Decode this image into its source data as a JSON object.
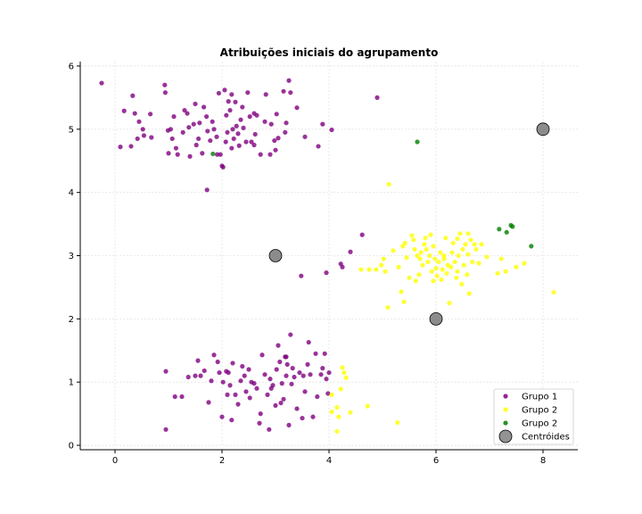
{
  "chart_data": {
    "type": "scatter",
    "title": "Atribuições iniciais do agrupamento",
    "xlabel": "",
    "ylabel": "",
    "xlim": [
      -0.65,
      8.65
    ],
    "ylim": [
      -0.07,
      6.07
    ],
    "xticks": [
      0,
      2,
      4,
      6,
      8
    ],
    "yticks": [
      0,
      1,
      2,
      3,
      4,
      5,
      6
    ],
    "grid": true,
    "legend_position": "bottom-right",
    "series": [
      {
        "name": "Grupo 1",
        "color": "#800080",
        "points": [
          [
            -0.25,
            5.73
          ],
          [
            0.17,
            5.29
          ],
          [
            0.33,
            5.53
          ],
          [
            0.1,
            4.72
          ],
          [
            0.3,
            4.73
          ],
          [
            0.37,
            5.25
          ],
          [
            0.42,
            4.85
          ],
          [
            0.45,
            5.12
          ],
          [
            0.52,
            5.0
          ],
          [
            0.54,
            4.9
          ],
          [
            0.66,
            5.24
          ],
          [
            0.68,
            4.87
          ],
          [
            0.93,
            5.7
          ],
          [
            0.94,
            5.58
          ],
          [
            0.99,
            4.98
          ],
          [
            1.0,
            4.62
          ],
          [
            1.04,
            5.0
          ],
          [
            1.07,
            4.85
          ],
          [
            1.1,
            5.2
          ],
          [
            1.14,
            4.7
          ],
          [
            1.17,
            4.6
          ],
          [
            1.27,
            4.95
          ],
          [
            1.3,
            5.3
          ],
          [
            1.35,
            5.25
          ],
          [
            1.38,
            5.03
          ],
          [
            1.4,
            4.57
          ],
          [
            1.47,
            5.08
          ],
          [
            1.52,
            4.75
          ],
          [
            1.56,
            4.85
          ],
          [
            1.58,
            5.1
          ],
          [
            1.63,
            4.62
          ],
          [
            1.66,
            5.35
          ],
          [
            1.71,
            5.2
          ],
          [
            1.73,
            4.97
          ],
          [
            1.78,
            4.82
          ],
          [
            1.82,
            5.12
          ],
          [
            1.85,
            5.0
          ],
          [
            1.9,
            4.88
          ],
          [
            1.94,
            5.57
          ],
          [
            1.97,
            4.6
          ],
          [
            2.0,
            4.42
          ],
          [
            2.02,
            4.4
          ],
          [
            2.05,
            5.62
          ],
          [
            2.07,
            4.8
          ],
          [
            2.08,
            5.22
          ],
          [
            2.1,
            4.95
          ],
          [
            2.12,
            5.44
          ],
          [
            2.15,
            5.3
          ],
          [
            2.18,
            4.7
          ],
          [
            2.2,
            5.0
          ],
          [
            2.22,
            4.85
          ],
          [
            2.25,
            5.43
          ],
          [
            2.27,
            5.05
          ],
          [
            2.3,
            4.93
          ],
          [
            2.32,
            4.74
          ],
          [
            2.35,
            5.15
          ],
          [
            2.4,
            5.02
          ],
          [
            2.45,
            4.8
          ],
          [
            2.48,
            5.58
          ],
          [
            2.52,
            5.2
          ],
          [
            2.55,
            4.8
          ],
          [
            2.6,
            5.25
          ],
          [
            2.62,
            4.92
          ],
          [
            2.65,
            5.22
          ],
          [
            2.72,
            4.6
          ],
          [
            2.8,
            5.12
          ],
          [
            2.82,
            5.55
          ],
          [
            2.9,
            4.6
          ],
          [
            2.92,
            5.08
          ],
          [
            2.98,
            4.82
          ],
          [
            3.0,
            4.67
          ],
          [
            3.02,
            5.24
          ],
          [
            3.05,
            4.86
          ],
          [
            3.15,
            5.6
          ],
          [
            3.18,
            4.95
          ],
          [
            3.2,
            5.1
          ],
          [
            3.25,
            5.77
          ],
          [
            3.28,
            5.58
          ],
          [
            3.4,
            5.34
          ],
          [
            3.55,
            4.88
          ],
          [
            3.8,
            4.73
          ],
          [
            3.88,
            5.08
          ],
          [
            4.05,
            4.99
          ],
          [
            4.9,
            5.5
          ],
          [
            1.72,
            4.04
          ],
          [
            1.91,
            4.6
          ],
          [
            2.18,
            5.55
          ],
          [
            2.38,
            5.35
          ],
          [
            1.5,
            5.4
          ],
          [
            2.6,
            4.75
          ],
          [
            0.95,
            0.25
          ],
          [
            0.95,
            1.17
          ],
          [
            1.12,
            0.77
          ],
          [
            1.37,
            1.08
          ],
          [
            1.5,
            1.1
          ],
          [
            1.55,
            1.34
          ],
          [
            1.6,
            1.1
          ],
          [
            1.67,
            1.18
          ],
          [
            1.75,
            0.68
          ],
          [
            1.8,
            1.02
          ],
          [
            1.85,
            1.43
          ],
          [
            1.92,
            1.32
          ],
          [
            1.95,
            1.15
          ],
          [
            2.0,
            0.45
          ],
          [
            2.02,
            1.0
          ],
          [
            2.08,
            1.17
          ],
          [
            2.1,
            0.8
          ],
          [
            2.12,
            1.15
          ],
          [
            2.15,
            0.95
          ],
          [
            2.18,
            0.4
          ],
          [
            2.2,
            1.3
          ],
          [
            2.25,
            0.8
          ],
          [
            2.3,
            0.65
          ],
          [
            2.35,
            1.02
          ],
          [
            2.38,
            1.25
          ],
          [
            2.42,
            1.1
          ],
          [
            2.45,
            0.85
          ],
          [
            2.5,
            1.2
          ],
          [
            2.52,
            0.75
          ],
          [
            2.55,
            1.0
          ],
          [
            2.6,
            0.98
          ],
          [
            2.65,
            0.9
          ],
          [
            2.7,
            0.35
          ],
          [
            2.72,
            0.5
          ],
          [
            2.75,
            1.43
          ],
          [
            2.8,
            1.12
          ],
          [
            2.85,
            0.8
          ],
          [
            2.88,
            0.25
          ],
          [
            2.9,
            1.05
          ],
          [
            2.92,
            0.9
          ],
          [
            2.95,
            0.95
          ],
          [
            3.0,
            0.63
          ],
          [
            3.02,
            1.2
          ],
          [
            3.05,
            1.58
          ],
          [
            3.08,
            1.32
          ],
          [
            3.1,
            0.67
          ],
          [
            3.12,
            0.98
          ],
          [
            3.15,
            0.73
          ],
          [
            3.18,
            1.4
          ],
          [
            3.2,
            1.1
          ],
          [
            3.22,
            1.28
          ],
          [
            3.25,
            0.32
          ],
          [
            3.28,
            1.75
          ],
          [
            3.3,
            0.97
          ],
          [
            3.32,
            1.22
          ],
          [
            3.35,
            1.08
          ],
          [
            3.4,
            0.58
          ],
          [
            3.45,
            1.15
          ],
          [
            3.5,
            0.43
          ],
          [
            3.52,
            1.1
          ],
          [
            3.55,
            0.85
          ],
          [
            3.6,
            1.28
          ],
          [
            3.62,
            1.63
          ],
          [
            3.65,
            1.12
          ],
          [
            3.7,
            0.45
          ],
          [
            3.75,
            1.45
          ],
          [
            3.78,
            0.77
          ],
          [
            3.85,
            1.12
          ],
          [
            3.88,
            1.22
          ],
          [
            3.92,
            1.45
          ],
          [
            3.95,
            1.05
          ],
          [
            3.98,
            0.82
          ],
          [
            4.0,
            1.15
          ],
          [
            4.62,
            3.33
          ],
          [
            4.4,
            3.06
          ],
          [
            4.25,
            2.82
          ],
          [
            4.22,
            2.87
          ],
          [
            3.95,
            2.73
          ],
          [
            3.48,
            2.68
          ],
          [
            3.2,
            1.4
          ],
          [
            1.25,
            0.77
          ]
        ]
      },
      {
        "name": "Grupo 2",
        "color": "#ffff00",
        "points": [
          [
            5.12,
            4.13
          ],
          [
            4.05,
            0.8
          ],
          [
            4.05,
            0.53
          ],
          [
            4.15,
            0.6
          ],
          [
            4.18,
            0.45
          ],
          [
            4.15,
            0.22
          ],
          [
            4.22,
            0.89
          ],
          [
            4.25,
            1.23
          ],
          [
            4.28,
            1.15
          ],
          [
            4.32,
            1.07
          ],
          [
            4.4,
            0.52
          ],
          [
            4.6,
            2.78
          ],
          [
            4.72,
            0.62
          ],
          [
            4.75,
            2.78
          ],
          [
            4.88,
            2.78
          ],
          [
            4.98,
            2.85
          ],
          [
            5.02,
            2.95
          ],
          [
            5.05,
            2.75
          ],
          [
            5.1,
            2.18
          ],
          [
            5.2,
            3.08
          ],
          [
            5.28,
            0.36
          ],
          [
            5.3,
            2.82
          ],
          [
            5.35,
            2.43
          ],
          [
            5.38,
            3.15
          ],
          [
            5.4,
            2.27
          ],
          [
            5.42,
            3.2
          ],
          [
            5.45,
            2.97
          ],
          [
            5.5,
            2.65
          ],
          [
            5.55,
            3.32
          ],
          [
            5.58,
            3.25
          ],
          [
            5.6,
            3.1
          ],
          [
            5.62,
            2.6
          ],
          [
            5.65,
            3.0
          ],
          [
            5.68,
            2.7
          ],
          [
            5.7,
            2.95
          ],
          [
            5.72,
            3.05
          ],
          [
            5.75,
            2.85
          ],
          [
            5.78,
            3.18
          ],
          [
            5.8,
            3.28
          ],
          [
            5.82,
            3.1
          ],
          [
            5.85,
            2.9
          ],
          [
            5.88,
            3.0
          ],
          [
            5.9,
            3.33
          ],
          [
            5.92,
            2.75
          ],
          [
            5.95,
            3.15
          ],
          [
            5.98,
            2.95
          ],
          [
            6.0,
            2.8
          ],
          [
            6.02,
            2.68
          ],
          [
            6.05,
            2.9
          ],
          [
            6.08,
            3.05
          ],
          [
            6.1,
            2.62
          ],
          [
            6.12,
            2.78
          ],
          [
            6.15,
            3.0
          ],
          [
            6.18,
            3.28
          ],
          [
            6.2,
            2.72
          ],
          [
            6.22,
            2.85
          ],
          [
            6.25,
            2.25
          ],
          [
            6.28,
            2.82
          ],
          [
            6.3,
            3.05
          ],
          [
            6.32,
            3.2
          ],
          [
            6.35,
            2.9
          ],
          [
            6.38,
            2.65
          ],
          [
            6.4,
            2.75
          ],
          [
            6.42,
            3.0
          ],
          [
            6.45,
            3.35
          ],
          [
            6.48,
            2.55
          ],
          [
            6.5,
            3.1
          ],
          [
            6.52,
            2.85
          ],
          [
            6.55,
            3.18
          ],
          [
            6.58,
            2.7
          ],
          [
            6.6,
            3.02
          ],
          [
            6.62,
            2.4
          ],
          [
            6.65,
            3.25
          ],
          [
            6.68,
            2.9
          ],
          [
            6.72,
            3.18
          ],
          [
            6.75,
            3.1
          ],
          [
            6.8,
            2.88
          ],
          [
            6.85,
            3.18
          ],
          [
            6.95,
            2.98
          ],
          [
            7.15,
            2.72
          ],
          [
            7.22,
            2.95
          ],
          [
            7.3,
            2.75
          ],
          [
            7.5,
            2.82
          ],
          [
            7.65,
            2.88
          ],
          [
            8.2,
            2.42
          ],
          [
            6.4,
            3.27
          ],
          [
            6.15,
            2.95
          ],
          [
            5.95,
            2.6
          ],
          [
            6.6,
            3.35
          ]
        ]
      },
      {
        "name": "Grupo 2",
        "color": "#008000",
        "points": [
          [
            1.83,
            4.61
          ],
          [
            5.65,
            4.8
          ],
          [
            7.18,
            3.42
          ],
          [
            7.32,
            3.37
          ],
          [
            7.4,
            3.48
          ],
          [
            7.43,
            3.46
          ],
          [
            7.78,
            3.15
          ]
        ]
      }
    ],
    "centroids": {
      "name": "Centróides",
      "color": "#808080",
      "points": [
        [
          8.0,
          5.0
        ],
        [
          3.0,
          3.0
        ],
        [
          6.0,
          2.0
        ]
      ]
    }
  }
}
